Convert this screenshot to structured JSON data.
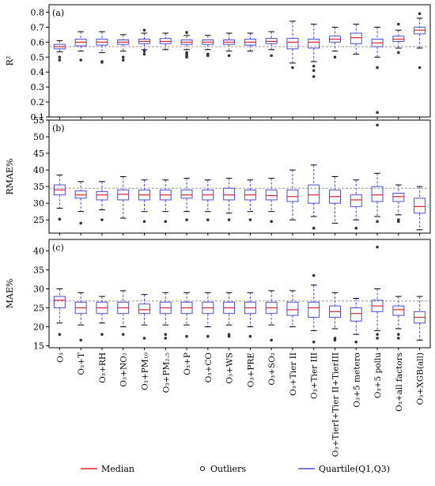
{
  "chart_data": {
    "type": "box",
    "categories": [
      "O₃",
      "O₃+T",
      "O₃+RH",
      "O₃+NO₂",
      "O₃+PM₁₀",
      "O₃+PM₂.₅",
      "O₃+P",
      "O₃+CO",
      "O₃+WS",
      "O₃+PRE",
      "O₃+SO₂",
      "O₃+Tier II",
      "O₃+Tier III",
      "O₃+TierI+Tier II+TierIII",
      "O₃+5 metero",
      "O₃+5 pollu",
      "O₃+all factors",
      "O₃+XGB(all)"
    ],
    "legend": {
      "entries": [
        "Median",
        "Outliers",
        "Quartile(Q1,Q3)"
      ],
      "placement": "bottom"
    },
    "colors": {
      "box": "#4a4ae6",
      "median": "#e0202a",
      "reference": "#999999",
      "outlier": "#333333"
    },
    "panels": [
      {
        "label": "(a)",
        "ylabel": "R²",
        "ylim": [
          0.1,
          0.85
        ],
        "yticks": [
          0.1,
          0.2,
          0.3,
          0.4,
          0.5,
          0.6,
          0.7,
          0.8
        ],
        "reference": 0.57,
        "boxes": [
          {
            "min": 0.535,
            "q1": 0.555,
            "median": 0.57,
            "q3": 0.585,
            "max": 0.61,
            "outliers": [
              0.5,
              0.48
            ]
          },
          {
            "min": 0.54,
            "q1": 0.575,
            "median": 0.6,
            "q3": 0.62,
            "max": 0.67,
            "outliers": [
              0.48
            ]
          },
          {
            "min": 0.53,
            "q1": 0.58,
            "median": 0.6,
            "q3": 0.62,
            "max": 0.67,
            "outliers": [
              0.47,
              0.465
            ]
          },
          {
            "min": 0.54,
            "q1": 0.585,
            "median": 0.6,
            "q3": 0.615,
            "max": 0.65,
            "outliers": [
              0.5,
              0.48
            ]
          },
          {
            "min": 0.55,
            "q1": 0.59,
            "median": 0.605,
            "q3": 0.62,
            "max": 0.66,
            "outliers": [
              0.52,
              0.54,
              0.68
            ]
          },
          {
            "min": 0.55,
            "q1": 0.59,
            "median": 0.605,
            "q3": 0.625,
            "max": 0.66,
            "outliers": []
          },
          {
            "min": 0.55,
            "q1": 0.585,
            "median": 0.6,
            "q3": 0.615,
            "max": 0.645,
            "outliers": [
              0.5,
              0.51,
              0.52,
              0.53,
              0.665
            ]
          },
          {
            "min": 0.55,
            "q1": 0.585,
            "median": 0.6,
            "q3": 0.615,
            "max": 0.645,
            "outliers": [
              0.51,
              0.52
            ]
          },
          {
            "min": 0.54,
            "q1": 0.585,
            "median": 0.6,
            "q3": 0.615,
            "max": 0.66,
            "outliers": [
              0.51
            ]
          },
          {
            "min": 0.54,
            "q1": 0.58,
            "median": 0.6,
            "q3": 0.62,
            "max": 0.66,
            "outliers": []
          },
          {
            "min": 0.55,
            "q1": 0.59,
            "median": 0.605,
            "q3": 0.625,
            "max": 0.67,
            "outliers": [
              0.51
            ]
          },
          {
            "min": 0.46,
            "q1": 0.555,
            "median": 0.6,
            "q3": 0.625,
            "max": 0.74,
            "outliers": [
              0.43
            ]
          },
          {
            "min": 0.47,
            "q1": 0.56,
            "median": 0.6,
            "q3": 0.62,
            "max": 0.72,
            "outliers": [
              0.44,
              0.41,
              0.37
            ]
          },
          {
            "min": 0.54,
            "q1": 0.6,
            "median": 0.62,
            "q3": 0.64,
            "max": 0.7,
            "outliers": [
              0.5
            ]
          },
          {
            "min": 0.52,
            "q1": 0.59,
            "median": 0.63,
            "q3": 0.66,
            "max": 0.72,
            "outliers": []
          },
          {
            "min": 0.5,
            "q1": 0.57,
            "median": 0.595,
            "q3": 0.62,
            "max": 0.7,
            "outliers": [
              0.43,
              0.13
            ]
          },
          {
            "min": 0.56,
            "q1": 0.605,
            "median": 0.62,
            "q3": 0.64,
            "max": 0.68,
            "outliers": [
              0.53,
              0.72
            ]
          },
          {
            "min": 0.56,
            "q1": 0.655,
            "median": 0.68,
            "q3": 0.7,
            "max": 0.76,
            "outliers": [
              0.43,
              0.79
            ]
          }
        ]
      },
      {
        "label": "(b)",
        "ylabel": "RMAE%",
        "ylim": [
          21,
          55
        ],
        "yticks": [
          25,
          30,
          35,
          40,
          45,
          50,
          55
        ],
        "reference": 34.5,
        "boxes": [
          {
            "min": 28.5,
            "q1": 32.5,
            "median": 34,
            "q3": 35.5,
            "max": 38.5,
            "outliers": [
              25.2
            ]
          },
          {
            "min": 27.5,
            "q1": 31.5,
            "median": 32.5,
            "q3": 33.7,
            "max": 36.5,
            "outliers": [
              24
            ]
          },
          {
            "min": 28,
            "q1": 31,
            "median": 32.5,
            "q3": 33.5,
            "max": 36.5,
            "outliers": [
              25
            ]
          },
          {
            "min": 25.5,
            "q1": 31,
            "median": 32.7,
            "q3": 34,
            "max": 38,
            "outliers": []
          },
          {
            "min": 27.5,
            "q1": 31,
            "median": 32.5,
            "q3": 34,
            "max": 37,
            "outliers": [
              24.5
            ]
          },
          {
            "min": 27.5,
            "q1": 31,
            "median": 32.5,
            "q3": 34,
            "max": 37,
            "outliers": [
              24.5
            ]
          },
          {
            "min": 27.5,
            "q1": 31.5,
            "median": 32.5,
            "q3": 34,
            "max": 37.5,
            "outliers": [
              25
            ]
          },
          {
            "min": 27.5,
            "q1": 31,
            "median": 32.5,
            "q3": 34,
            "max": 37,
            "outliers": [
              25
            ]
          },
          {
            "min": 27,
            "q1": 31,
            "median": 32.5,
            "q3": 34.5,
            "max": 37.5,
            "outliers": [
              25
            ]
          },
          {
            "min": 27.5,
            "q1": 31,
            "median": 32.5,
            "q3": 34,
            "max": 37,
            "outliers": [
              25
            ]
          },
          {
            "min": 27.5,
            "q1": 31,
            "median": 32.3,
            "q3": 34,
            "max": 37.5,
            "outliers": [
              24.5
            ]
          },
          {
            "min": 25,
            "q1": 30.5,
            "median": 32,
            "q3": 34,
            "max": 40,
            "outliers": []
          },
          {
            "min": 26,
            "q1": 30,
            "median": 32.5,
            "q3": 35.5,
            "max": 41.5,
            "outliers": [
              22.5
            ]
          },
          {
            "min": 24,
            "q1": 30,
            "median": 32,
            "q3": 34,
            "max": 38,
            "outliers": []
          },
          {
            "min": 25,
            "q1": 29,
            "median": 31,
            "q3": 32.5,
            "max": 37,
            "outliers": [
              22.5
            ]
          },
          {
            "min": 26,
            "q1": 30.5,
            "median": 32.5,
            "q3": 35,
            "max": 39,
            "outliers": [
              24.5,
              53.5
            ]
          },
          {
            "min": 26.5,
            "q1": 30.5,
            "median": 32,
            "q3": 33,
            "max": 35.5,
            "outliers": [
              24.5,
              25
            ]
          },
          {
            "min": 22,
            "q1": 27,
            "median": 29,
            "q3": 31.5,
            "max": 35,
            "outliers": []
          }
        ]
      },
      {
        "label": "(c)",
        "ylabel": "MAE%",
        "ylim": [
          14.5,
          43
        ],
        "yticks": [
          15,
          20,
          25,
          30,
          35,
          40
        ],
        "reference": 26.8,
        "boxes": [
          {
            "min": 21,
            "q1": 25,
            "median": 27,
            "q3": 28,
            "max": 30,
            "outliers": [
              18
            ]
          },
          {
            "min": 20.5,
            "q1": 23.5,
            "median": 25,
            "q3": 26.5,
            "max": 29,
            "outliers": [
              16.5
            ]
          },
          {
            "min": 21,
            "q1": 23.5,
            "median": 25,
            "q3": 26.5,
            "max": 28,
            "outliers": [
              18
            ]
          },
          {
            "min": 20,
            "q1": 23.5,
            "median": 25,
            "q3": 26.5,
            "max": 29.5,
            "outliers": [
              18
            ]
          },
          {
            "min": 20.5,
            "q1": 23.5,
            "median": 24.5,
            "q3": 26,
            "max": 28.5,
            "outliers": [
              17
            ]
          },
          {
            "min": 20.5,
            "q1": 23.5,
            "median": 25,
            "q3": 26.5,
            "max": 29,
            "outliers": [
              17,
              18
            ]
          },
          {
            "min": 20.5,
            "q1": 23.5,
            "median": 25,
            "q3": 26.5,
            "max": 29,
            "outliers": [
              17.5
            ]
          },
          {
            "min": 20,
            "q1": 23.5,
            "median": 25,
            "q3": 26.5,
            "max": 29,
            "outliers": [
              17.5
            ]
          },
          {
            "min": 20.5,
            "q1": 23.5,
            "median": 25,
            "q3": 26.5,
            "max": 29,
            "outliers": [
              17.5,
              18
            ]
          },
          {
            "min": 20,
            "q1": 23.5,
            "median": 25,
            "q3": 26.5,
            "max": 29,
            "outliers": [
              17.5
            ]
          },
          {
            "min": 20.5,
            "q1": 23.5,
            "median": 25,
            "q3": 26.5,
            "max": 29.5,
            "outliers": [
              16.5
            ]
          },
          {
            "min": 20,
            "q1": 23,
            "median": 24.5,
            "q3": 26.5,
            "max": 29.5,
            "outliers": []
          },
          {
            "min": 19,
            "q1": 22.5,
            "median": 25,
            "q3": 26.5,
            "max": 31,
            "outliers": [
              16,
              33.5
            ]
          },
          {
            "min": 19.5,
            "q1": 22.5,
            "median": 24,
            "q3": 25.5,
            "max": 29,
            "outliers": [
              16.5,
              17
            ]
          },
          {
            "min": 18,
            "q1": 21.5,
            "median": 23.5,
            "q3": 25,
            "max": 27.5,
            "outliers": [
              16
            ]
          },
          {
            "min": 19,
            "q1": 24,
            "median": 25.5,
            "q3": 27,
            "max": 30,
            "outliers": [
              17,
              18,
              41
            ]
          },
          {
            "min": 19.5,
            "q1": 23,
            "median": 24.5,
            "q3": 25.5,
            "max": 28,
            "outliers": [
              17,
              18
            ]
          },
          {
            "min": 16.5,
            "q1": 21,
            "median": 22.5,
            "q3": 24,
            "max": 28,
            "outliers": []
          }
        ]
      }
    ]
  }
}
